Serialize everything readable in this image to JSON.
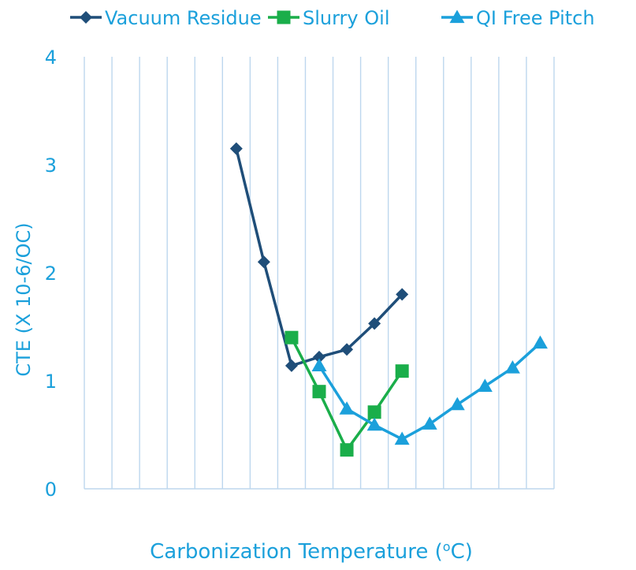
{
  "chart_data": {
    "type": "line",
    "xlabel_main": "Carbonization Temperature (",
    "xlabel_sup": "o",
    "xlabel_end": "C)",
    "ylabel": "CTE (X 10-6/OC)",
    "ylim": [
      0,
      4
    ],
    "yticks": [
      "0",
      "1",
      "2",
      "3",
      "4"
    ],
    "x_slots": 17,
    "grid": "vertical lines",
    "legend_position": "top",
    "series": [
      {
        "name": "Vacuum Residue",
        "marker": "diamond",
        "color": "#1F4E79",
        "points": [
          [
            5,
            3.15
          ],
          [
            6,
            2.1
          ],
          [
            7,
            1.14
          ],
          [
            8,
            1.22
          ],
          [
            9,
            1.29
          ],
          [
            10,
            1.53
          ],
          [
            11,
            1.8
          ]
        ]
      },
      {
        "name": "Slurry Oil",
        "marker": "square",
        "color": "#1AAE4A",
        "points": [
          [
            7,
            1.4
          ],
          [
            8,
            0.9
          ],
          [
            9,
            0.36
          ],
          [
            10,
            0.71
          ],
          [
            11,
            1.09
          ]
        ]
      },
      {
        "name": "QI Free Pitch",
        "marker": "triangle",
        "color": "#1BA0DB",
        "points": [
          [
            8,
            1.14
          ],
          [
            9,
            0.74
          ],
          [
            10,
            0.59
          ],
          [
            11,
            0.46
          ],
          [
            12,
            0.6
          ],
          [
            13,
            0.78
          ],
          [
            14,
            0.95
          ],
          [
            15,
            1.12
          ],
          [
            16,
            1.35
          ]
        ]
      }
    ]
  }
}
